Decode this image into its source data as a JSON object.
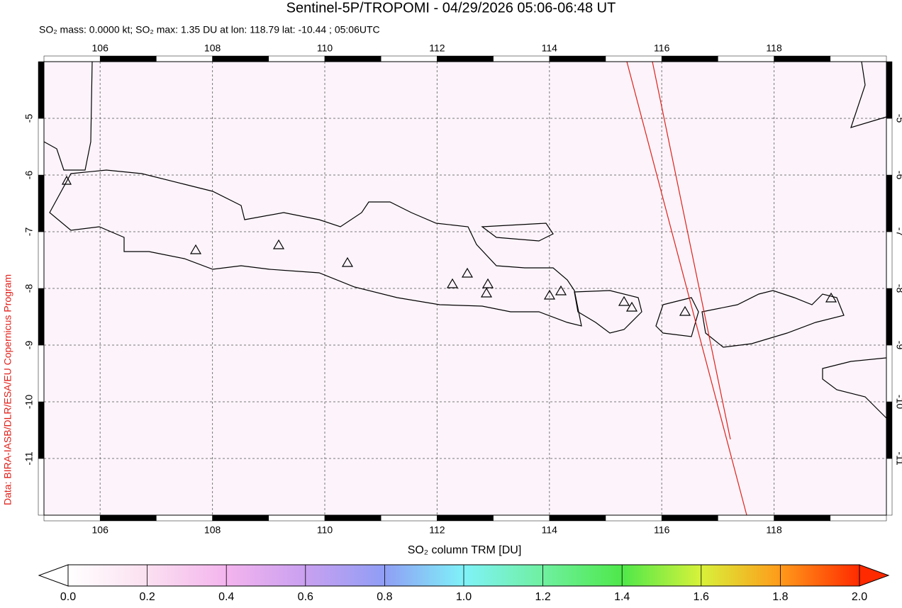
{
  "title": "Sentinel-5P/TROPOMI - 04/29/2026 05:06-06:48 UT",
  "subtitle": "SO₂ mass: 0.0000 kt; SO₂ max: 1.35 DU at lon: 118.79 lat: -10.44 ; 05:06UTC",
  "credit": "Data: BIRA-IASB/DLR/ESA/EU Copernicus Program",
  "map": {
    "xlim": [
      105,
      120
    ],
    "ylim": [
      -12,
      -4
    ],
    "xticks": [
      106,
      108,
      110,
      112,
      114,
      116,
      118
    ],
    "yticks": [
      -5,
      -6,
      -7,
      -8,
      -9,
      -10,
      -11
    ]
  },
  "colorbar": {
    "label": "SO₂ column TRM [DU]",
    "lim": [
      0,
      2
    ],
    "ticks": [
      {
        "value": 0,
        "label": "0.0"
      },
      {
        "value": 0.2,
        "label": "0.2"
      },
      {
        "value": 0.4,
        "label": "0.4"
      },
      {
        "value": 0.6,
        "label": "0.6"
      },
      {
        "value": 0.8,
        "label": "0.8"
      },
      {
        "value": 1,
        "label": "1.0"
      },
      {
        "value": 1.2,
        "label": "1.2"
      },
      {
        "value": 1.4,
        "label": "1.4"
      },
      {
        "value": 1.6,
        "label": "1.6"
      },
      {
        "value": 1.8,
        "label": "1.8"
      },
      {
        "value": 2,
        "label": "2.0"
      }
    ]
  }
}
